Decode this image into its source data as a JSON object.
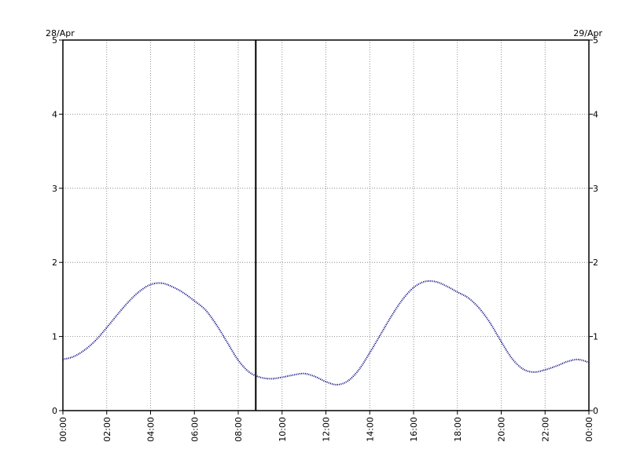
{
  "chart_data": {
    "type": "line",
    "title": "",
    "xlabel": "",
    "ylabel": "",
    "date_start_label": "28/Apr",
    "date_end_label": "29/Apr",
    "x_unit": "hour",
    "xlim": [
      0,
      24
    ],
    "ylim": [
      0,
      5
    ],
    "y_ticks": [
      0,
      1,
      2,
      3,
      4,
      5
    ],
    "x_ticks": [
      0,
      2,
      4,
      6,
      8,
      10,
      12,
      14,
      16,
      18,
      20,
      22,
      24
    ],
    "x_tick_labels": [
      "00:00",
      "02:00",
      "04:00",
      "06:00",
      "08:00",
      "10:00",
      "12:00",
      "14:00",
      "16:00",
      "18:00",
      "20:00",
      "22:00",
      "00:00"
    ],
    "grid": true,
    "marker_x": 8.8,
    "series": [
      {
        "color": "#000080",
        "style": "dotted",
        "x": [
          0,
          0.5,
          1,
          1.5,
          2,
          2.5,
          3,
          3.5,
          4,
          4.5,
          5,
          5.5,
          6,
          6.5,
          7,
          7.5,
          8,
          8.5,
          9,
          9.5,
          10,
          10.5,
          11,
          11.5,
          12,
          12.5,
          13,
          13.5,
          14,
          14.5,
          15,
          15.5,
          16,
          16.5,
          17,
          17.5,
          18,
          18.5,
          19,
          19.5,
          20,
          20.5,
          21,
          21.5,
          22,
          22.5,
          23,
          23.5,
          24
        ],
        "values": [
          0.69,
          0.73,
          0.82,
          0.95,
          1.12,
          1.3,
          1.47,
          1.61,
          1.7,
          1.72,
          1.67,
          1.59,
          1.48,
          1.36,
          1.16,
          0.92,
          0.68,
          0.52,
          0.45,
          0.43,
          0.45,
          0.48,
          0.5,
          0.46,
          0.39,
          0.35,
          0.4,
          0.55,
          0.78,
          1.03,
          1.28,
          1.5,
          1.66,
          1.74,
          1.74,
          1.68,
          1.6,
          1.52,
          1.38,
          1.18,
          0.93,
          0.7,
          0.56,
          0.52,
          0.55,
          0.6,
          0.66,
          0.69,
          0.65
        ]
      }
    ]
  }
}
